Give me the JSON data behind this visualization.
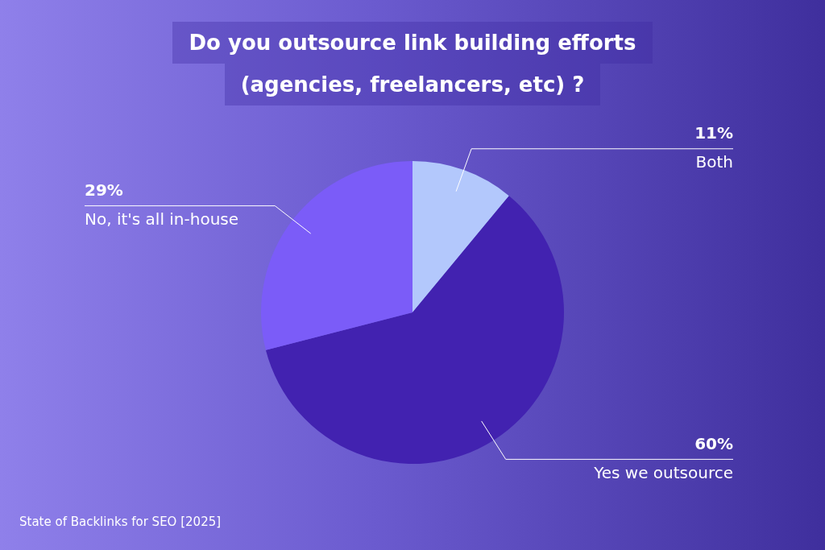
{
  "chart_data": {
    "type": "pie",
    "title": "Do you outsource link building efforts\n(agencies, freelancers, etc) ?",
    "categories": [
      "Both",
      "Yes we outsource",
      "No, it's all in-house"
    ],
    "values": [
      11,
      60,
      29
    ],
    "value_labels": [
      "11%",
      "60%",
      "29%"
    ],
    "colors": [
      "#b3c8fc",
      "#4222b0",
      "#7b5cf8"
    ],
    "legend": false,
    "annotations": [
      "State of Backlinks for SEO [2025]"
    ]
  }
}
